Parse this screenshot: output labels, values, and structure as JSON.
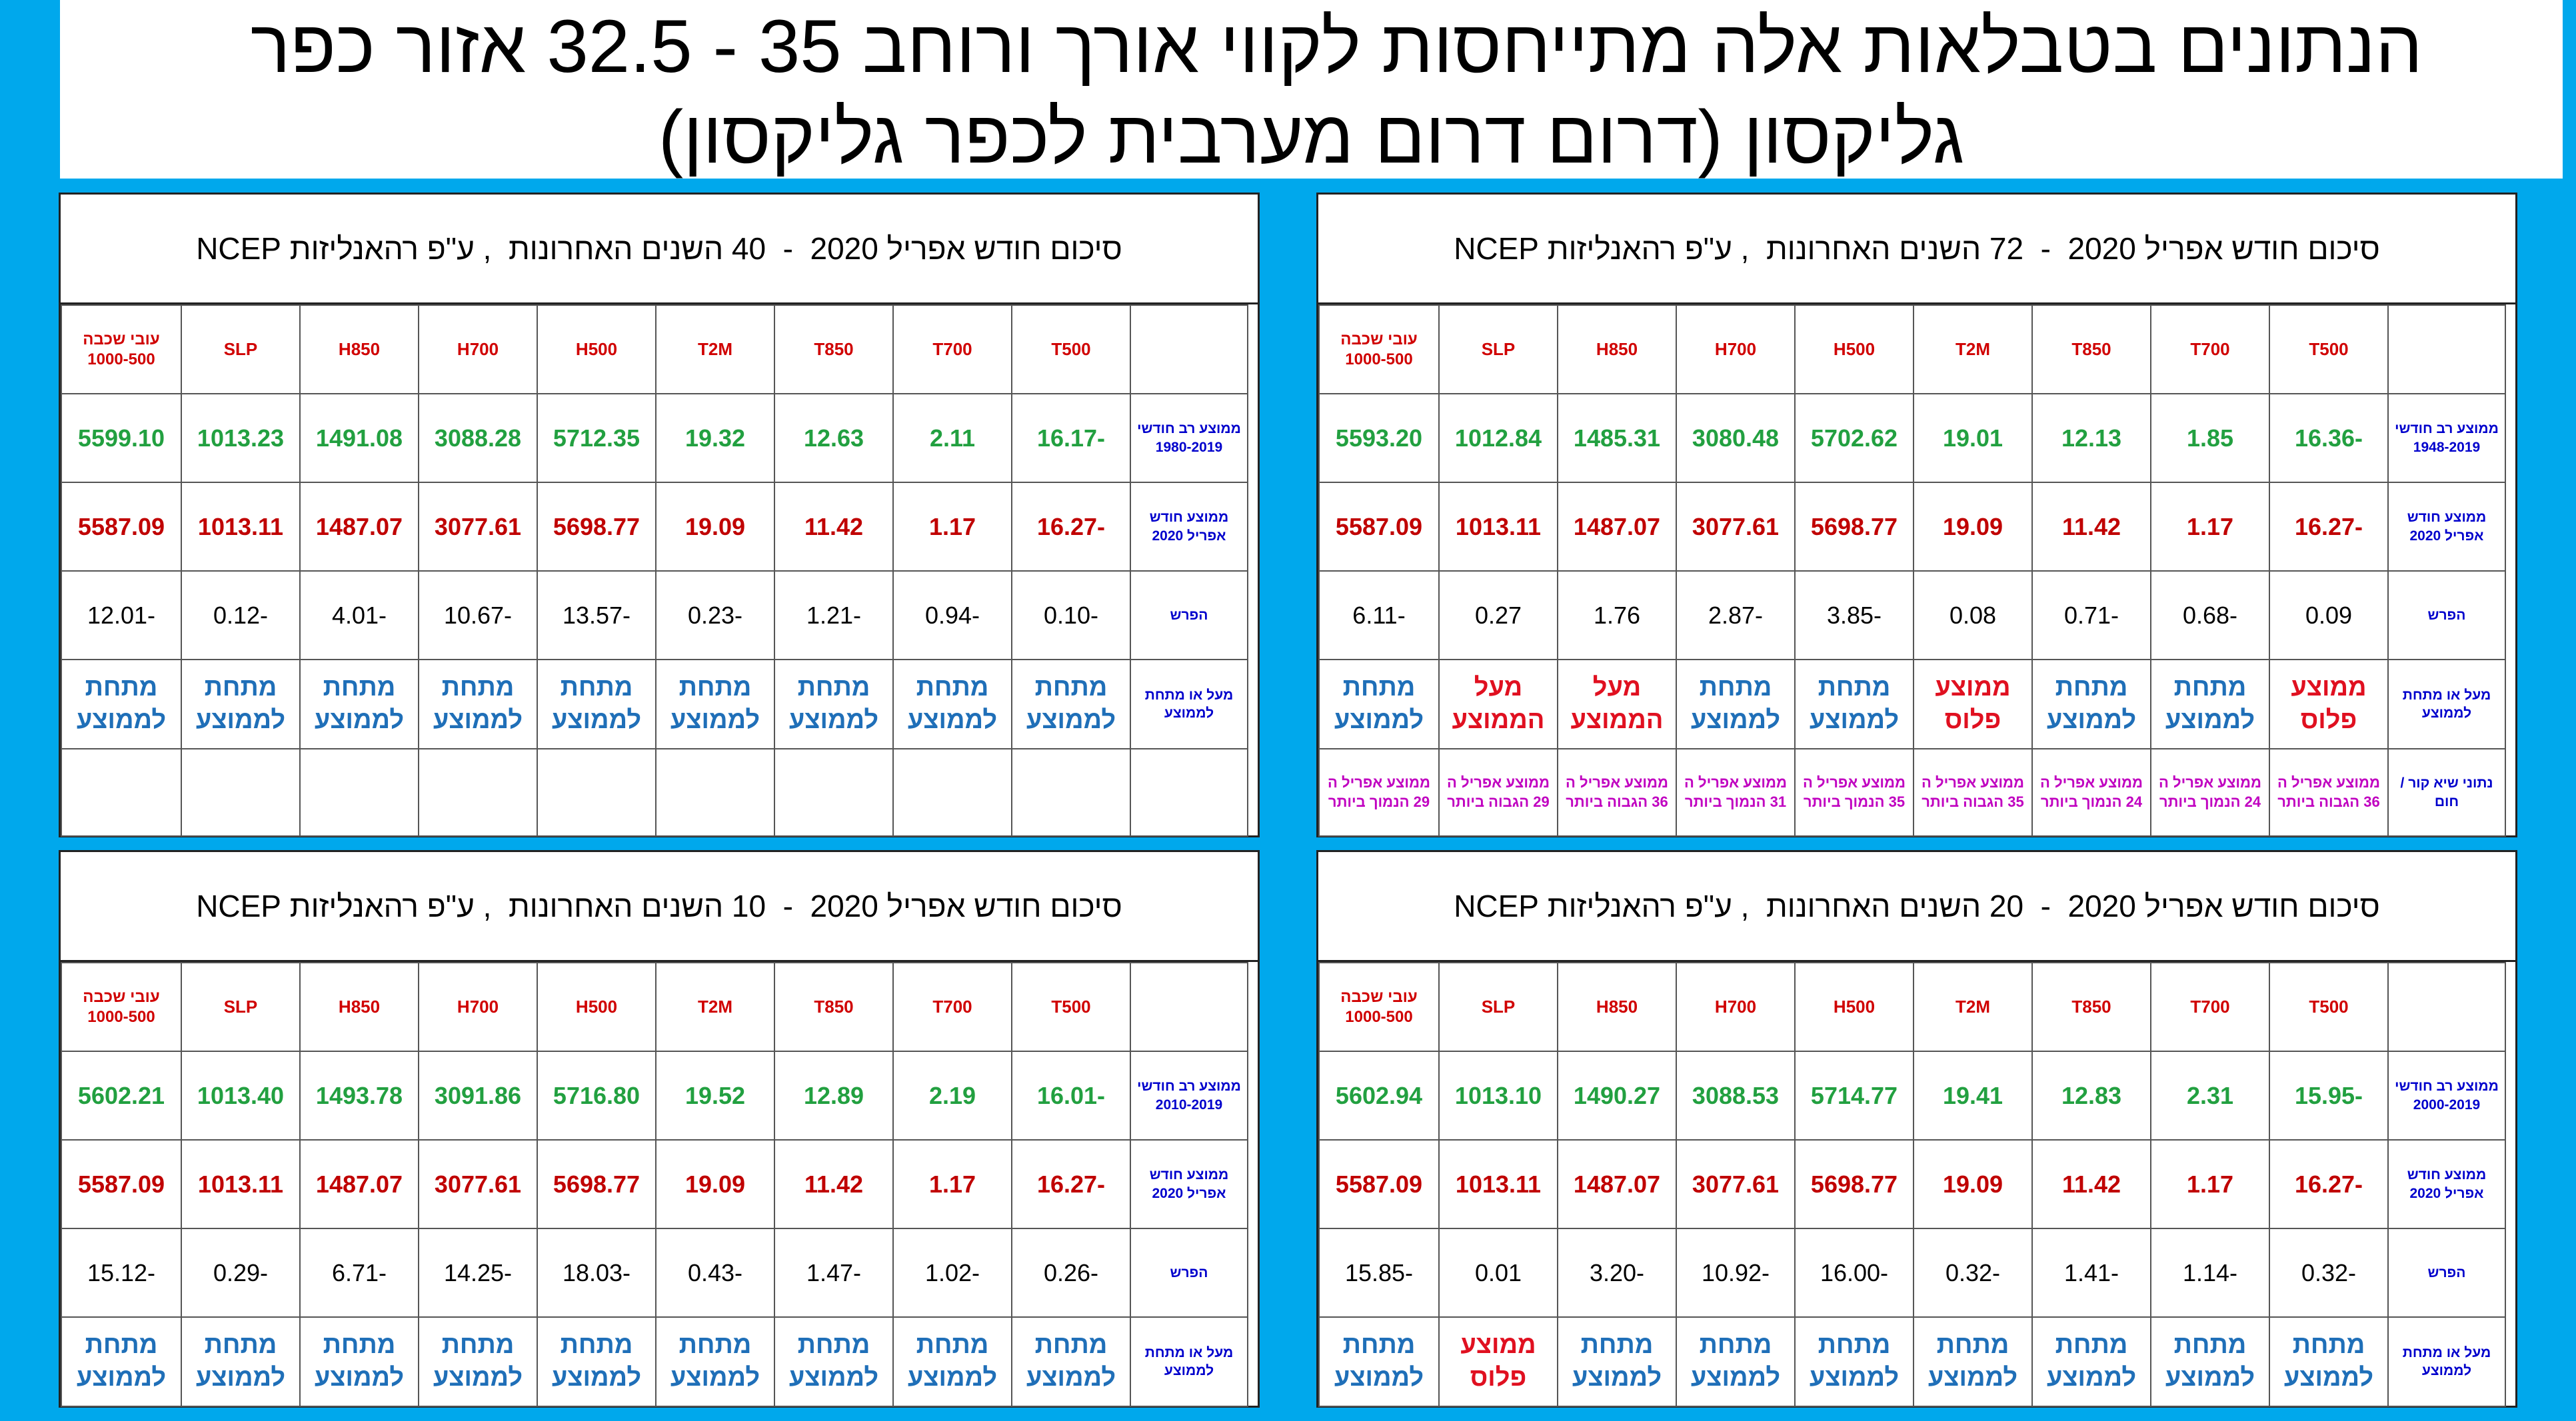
{
  "title": {
    "line1": "הנתונים בטבלאות אלה מתייחסות לקווי אורך ורוחב 35 - 32.5     אזור כפר",
    "line2": "גליקסון  (דרום דרום מערבית לכפר גליקסון)"
  },
  "columns": [
    "T500",
    "T700",
    "T850",
    "T2M",
    "H500",
    "H700",
    "H850",
    "SLP",
    "עובי שכבה 1000-500"
  ],
  "row_labels": {
    "current": "ממוצע חודש אפריל 2020",
    "diff": "הפרש",
    "status": "מעל או מתחת לממוצע",
    "extremes": "נתוני שיא  קור / חום"
  },
  "status_labels": {
    "below": "מתחת לממוצע",
    "above": "מעל הממוצע",
    "normal": "ממוצע פלוס"
  },
  "colors": {
    "background": "#00A8EC",
    "green": "#22A040",
    "red": "#C00000",
    "blue": "#1F6FB8",
    "magenta": "#C000C0"
  },
  "panels": [
    {
      "id": "72y",
      "title": "סיכום חודש אפריל 2020  -  72 השנים האחרונות  , ע\"פ רהאנליזות NCEP",
      "longterm_label": "ממוצע רב חודשי 1948-2019",
      "longterm": [
        "-16.36",
        "1.85",
        "12.13",
        "19.01",
        "5702.62",
        "3080.48",
        "1485.31",
        "1012.84",
        "5593.20"
      ],
      "current": [
        "-16.27",
        "1.17",
        "11.42",
        "19.09",
        "5698.77",
        "3077.61",
        "1487.07",
        "1013.11",
        "5587.09"
      ],
      "diff": [
        "0.09",
        "-0.68",
        "-0.71",
        "0.08",
        "-3.85",
        "-2.87",
        "1.76",
        "0.27",
        "-6.11"
      ],
      "status": [
        "normal",
        "below",
        "below",
        "normal",
        "below",
        "below",
        "above",
        "above",
        "below"
      ],
      "extremes": [
        "ממוצע אפריל ה 36 הגבוה ביותר",
        "ממוצע אפריל ה 24 הנמוך ביותר",
        "ממוצע אפריל ה 24 הנמוך ביותר",
        "ממוצע אפריל ה 35 הגבוה ביותר",
        "ממוצע אפריל ה 35 הנמוך ביותר",
        "ממוצע אפריל ה 31 הנמוך ביותר",
        "ממוצע אפריל ה 36 הגבוה ביותר",
        "ממוצע אפריל ה 29 הגבוה ביותר",
        "ממוצע אפריל ה 29 הנמוך ביותר"
      ]
    },
    {
      "id": "40y",
      "title": "סיכום חודש אפריל 2020  -  40 השנים האחרונות  , ע\"פ רהאנליזות NCEP",
      "longterm_label": "ממוצע רב חודשי 1980-2019",
      "longterm": [
        "-16.17",
        "2.11",
        "12.63",
        "19.32",
        "5712.35",
        "3088.28",
        "1491.08",
        "1013.23",
        "5599.10"
      ],
      "current": [
        "-16.27",
        "1.17",
        "11.42",
        "19.09",
        "5698.77",
        "3077.61",
        "1487.07",
        "1013.11",
        "5587.09"
      ],
      "diff": [
        "-0.10",
        "-0.94",
        "-1.21",
        "-0.23",
        "-13.57",
        "-10.67",
        "-4.01",
        "-0.12",
        "-12.01"
      ],
      "status": [
        "below",
        "below",
        "below",
        "below",
        "below",
        "below",
        "below",
        "below",
        "below"
      ],
      "extremes": [
        "",
        "",
        "",
        "",
        "",
        "",
        "",
        "",
        ""
      ]
    },
    {
      "id": "20y",
      "title": "סיכום חודש אפריל 2020  -  20 השנים האחרונות  , ע\"פ רהאנליזות NCEP",
      "longterm_label": "ממוצע רב חודשי 2000-2019",
      "longterm": [
        "-15.95",
        "2.31",
        "12.83",
        "19.41",
        "5714.77",
        "3088.53",
        "1490.27",
        "1013.10",
        "5602.94"
      ],
      "current": [
        "-16.27",
        "1.17",
        "11.42",
        "19.09",
        "5698.77",
        "3077.61",
        "1487.07",
        "1013.11",
        "5587.09"
      ],
      "diff": [
        "-0.32",
        "-1.14",
        "-1.41",
        "-0.32",
        "-16.00",
        "-10.92",
        "-3.20",
        "0.01",
        "-15.85"
      ],
      "status": [
        "below",
        "below",
        "below",
        "below",
        "below",
        "below",
        "below",
        "normal",
        "below"
      ]
    },
    {
      "id": "10y",
      "title": "סיכום חודש אפריל 2020  -  10 השנים האחרונות  , ע\"פ רהאנליזות NCEP",
      "longterm_label": "ממוצע רב חודשי 2010-2019",
      "longterm": [
        "-16.01",
        "2.19",
        "12.89",
        "19.52",
        "5716.80",
        "3091.86",
        "1493.78",
        "1013.40",
        "5602.21"
      ],
      "current": [
        "-16.27",
        "1.17",
        "11.42",
        "19.09",
        "5698.77",
        "3077.61",
        "1487.07",
        "1013.11",
        "5587.09"
      ],
      "diff": [
        "-0.26",
        "-1.02",
        "-1.47",
        "-0.43",
        "-18.03",
        "-14.25",
        "-6.71",
        "-0.29",
        "-15.12"
      ],
      "status": [
        "below",
        "below",
        "below",
        "below",
        "below",
        "below",
        "below",
        "below",
        "below"
      ]
    }
  ]
}
